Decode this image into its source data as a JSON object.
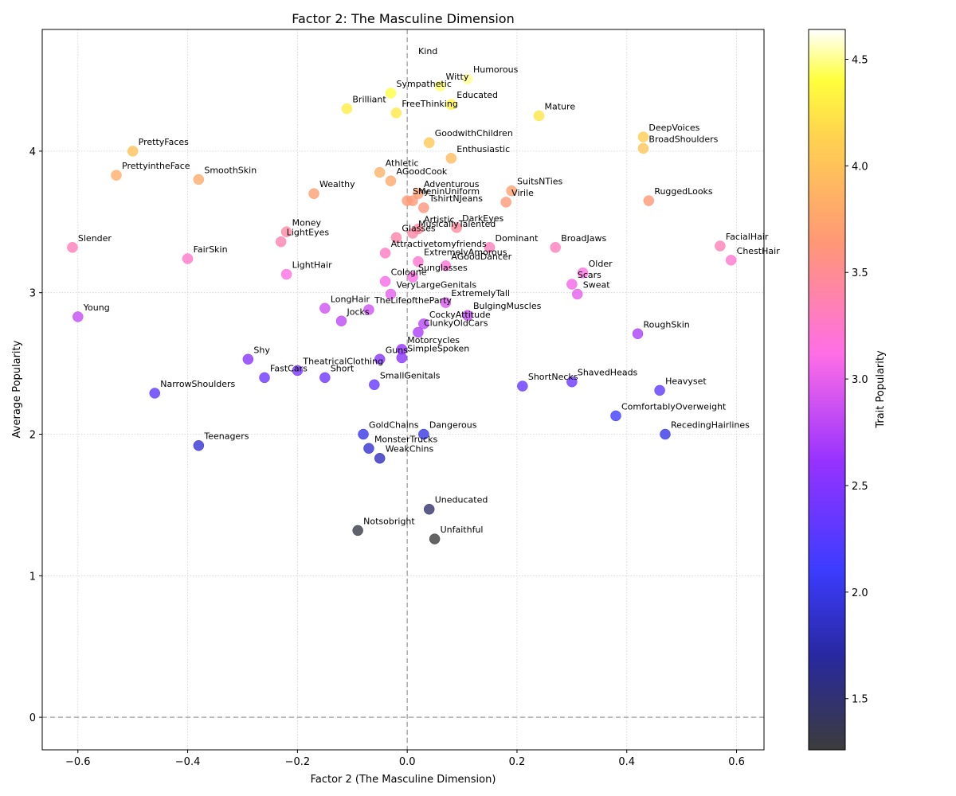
{
  "chart_data": {
    "type": "scatter",
    "title": "Factor 2: The Masculine Dimension",
    "xlabel": "Factor 2 (The Masculine Dimension)",
    "ylabel": "Average Popularity",
    "xlim": [
      -0.665,
      0.65
    ],
    "ylim": [
      -0.23,
      4.86
    ],
    "xticks": [
      -0.6,
      -0.4,
      -0.2,
      0.0,
      0.2,
      0.4,
      0.6
    ],
    "xtick_labels": [
      "−0.6",
      "−0.4",
      "−0.2",
      "0.0",
      "0.2",
      "0.4",
      "0.6"
    ],
    "yticks": [
      0,
      1,
      2,
      3,
      4
    ],
    "ytick_labels": [
      "0",
      "1",
      "2",
      "3",
      "4"
    ],
    "grid": true,
    "reference_lines": {
      "x": 0,
      "y": 0
    },
    "colorbar": {
      "label": "Trait Popularity",
      "range": [
        1.26,
        4.64
      ],
      "ticks": [
        1.5,
        2.0,
        2.5,
        3.0,
        3.5,
        4.0,
        4.5
      ],
      "tick_labels": [
        "1.5",
        "2.0",
        "2.5",
        "3.0",
        "3.5",
        "4.0",
        "4.5"
      ],
      "colormap": "gnuplot2-like: dark gray → blue → purple → pink → orange → yellow → white"
    },
    "points": [
      {
        "label": "Kind",
        "x": 0.01,
        "y": 4.64
      },
      {
        "label": "Humorous",
        "x": 0.11,
        "y": 4.51
      },
      {
        "label": "Witty",
        "x": 0.06,
        "y": 4.46
      },
      {
        "label": "Sympathetic",
        "x": -0.03,
        "y": 4.41
      },
      {
        "label": "Educated",
        "x": 0.08,
        "y": 4.33
      },
      {
        "label": "Brilliant",
        "x": -0.11,
        "y": 4.3
      },
      {
        "label": "FreeThinking",
        "x": -0.02,
        "y": 4.27
      },
      {
        "label": "Mature",
        "x": 0.24,
        "y": 4.25
      },
      {
        "label": "DeepVoices",
        "x": 0.43,
        "y": 4.1
      },
      {
        "label": "GoodwithChildren",
        "x": 0.04,
        "y": 4.06
      },
      {
        "label": "BroadShoulders",
        "x": 0.43,
        "y": 4.02
      },
      {
        "label": "PrettyFaces",
        "x": -0.5,
        "y": 4.0
      },
      {
        "label": "Enthusiastic",
        "x": 0.08,
        "y": 3.95
      },
      {
        "label": "Athletic",
        "x": -0.05,
        "y": 3.85
      },
      {
        "label": "PrettyintheFace",
        "x": -0.53,
        "y": 3.83
      },
      {
        "label": "SmoothSkin",
        "x": -0.38,
        "y": 3.8
      },
      {
        "label": "AGoodCook",
        "x": -0.03,
        "y": 3.79
      },
      {
        "label": "SuitsNTies",
        "x": 0.19,
        "y": 3.72
      },
      {
        "label": "Adventurous",
        "x": 0.02,
        "y": 3.7
      },
      {
        "label": "Wealthy",
        "x": -0.17,
        "y": 3.7
      },
      {
        "label": "Shy",
        "x": 0.0,
        "y": 3.65
      },
      {
        "label": "MeninUniform",
        "x": 0.01,
        "y": 3.65
      },
      {
        "label": "RuggedLooks",
        "x": 0.44,
        "y": 3.65
      },
      {
        "label": "Virile",
        "x": 0.18,
        "y": 3.64
      },
      {
        "label": "TshirtNJeans",
        "x": 0.03,
        "y": 3.6
      },
      {
        "label": "DarkEyes",
        "x": 0.09,
        "y": 3.46
      },
      {
        "label": "Artistic",
        "x": 0.02,
        "y": 3.45
      },
      {
        "label": "MusicallyTalented",
        "x": 0.01,
        "y": 3.42
      },
      {
        "label": "Money",
        "x": -0.22,
        "y": 3.43
      },
      {
        "label": "Glasses",
        "x": -0.02,
        "y": 3.39
      },
      {
        "label": "LightEyes",
        "x": -0.23,
        "y": 3.36
      },
      {
        "label": "FacialHair",
        "x": 0.57,
        "y": 3.33
      },
      {
        "label": "Slender",
        "x": -0.61,
        "y": 3.32
      },
      {
        "label": "Dominant",
        "x": 0.15,
        "y": 3.32
      },
      {
        "label": "BroadJaws",
        "x": 0.27,
        "y": 3.32
      },
      {
        "label": "Attractivetomyfriends",
        "x": -0.04,
        "y": 3.28
      },
      {
        "label": "FairSkin",
        "x": -0.4,
        "y": 3.24
      },
      {
        "label": "ChestHair",
        "x": 0.59,
        "y": 3.23
      },
      {
        "label": "ExtremelyAmorous",
        "x": 0.02,
        "y": 3.22
      },
      {
        "label": "AGoodDancer",
        "x": 0.07,
        "y": 3.19
      },
      {
        "label": "Older",
        "x": 0.32,
        "y": 3.14
      },
      {
        "label": "LightHair",
        "x": -0.22,
        "y": 3.13
      },
      {
        "label": "Sunglasses",
        "x": 0.01,
        "y": 3.11
      },
      {
        "label": "Cologne",
        "x": -0.04,
        "y": 3.08
      },
      {
        "label": "Scars",
        "x": 0.3,
        "y": 3.06
      },
      {
        "label": "VeryLargeGenitals",
        "x": -0.03,
        "y": 2.99
      },
      {
        "label": "Sweat",
        "x": 0.31,
        "y": 2.99
      },
      {
        "label": "ExtremelyTall",
        "x": 0.07,
        "y": 2.93
      },
      {
        "label": "LongHair",
        "x": -0.15,
        "y": 2.89
      },
      {
        "label": "TheLifeoftheParty",
        "x": -0.07,
        "y": 2.88
      },
      {
        "label": "BulgingMuscles",
        "x": 0.11,
        "y": 2.84
      },
      {
        "label": "Young",
        "x": -0.6,
        "y": 2.83
      },
      {
        "label": "Jocks",
        "x": -0.12,
        "y": 2.8
      },
      {
        "label": "CockyAttitude",
        "x": 0.03,
        "y": 2.78
      },
      {
        "label": "ClunkyOldCars",
        "x": 0.02,
        "y": 2.72
      },
      {
        "label": "RoughSkin",
        "x": 0.42,
        "y": 2.71
      },
      {
        "label": "Motorcycles",
        "x": -0.01,
        "y": 2.6
      },
      {
        "label": "Guns",
        "x": -0.05,
        "y": 2.53
      },
      {
        "label": "SimpleSpoken",
        "x": -0.01,
        "y": 2.54
      },
      {
        "label": "Shy",
        "x": -0.29,
        "y": 2.53
      },
      {
        "label": "TheatricalClothing",
        "x": -0.2,
        "y": 2.45
      },
      {
        "label": "FastCars",
        "x": -0.26,
        "y": 2.4
      },
      {
        "label": "Short",
        "x": -0.15,
        "y": 2.4
      },
      {
        "label": "ShavedHeads",
        "x": 0.3,
        "y": 2.37
      },
      {
        "label": "SmallGenitals",
        "x": -0.06,
        "y": 2.35
      },
      {
        "label": "ShortNecks",
        "x": 0.21,
        "y": 2.34
      },
      {
        "label": "Heavyset",
        "x": 0.46,
        "y": 2.31
      },
      {
        "label": "NarrowShoulders",
        "x": -0.46,
        "y": 2.29
      },
      {
        "label": "ComfortablyOverweight",
        "x": 0.38,
        "y": 2.13
      },
      {
        "label": "GoldChains",
        "x": -0.08,
        "y": 2.0
      },
      {
        "label": "Dangerous",
        "x": 0.03,
        "y": 2.0
      },
      {
        "label": "RecedingHairlines",
        "x": 0.47,
        "y": 2.0
      },
      {
        "label": "Teenagers",
        "x": -0.38,
        "y": 1.92
      },
      {
        "label": "MonsterTrucks",
        "x": -0.07,
        "y": 1.9
      },
      {
        "label": "WeakChins",
        "x": -0.05,
        "y": 1.83
      },
      {
        "label": "Uneducated",
        "x": 0.04,
        "y": 1.47
      },
      {
        "label": "Notsobright",
        "x": -0.09,
        "y": 1.32
      },
      {
        "label": "Unfaithful",
        "x": 0.05,
        "y": 1.26
      }
    ]
  }
}
